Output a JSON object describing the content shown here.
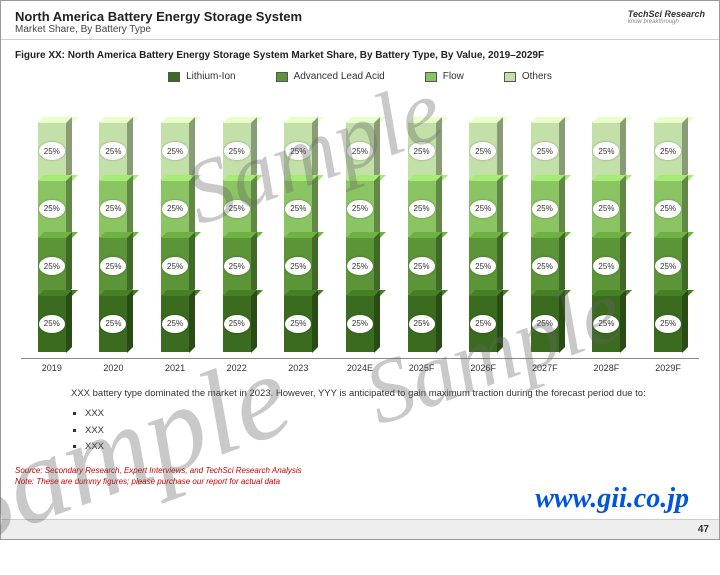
{
  "header": {
    "title": "North America Battery Energy Storage System",
    "subtitle": "Market Share, By Battery Type",
    "logo": "TechSci Research",
    "logo_sub": "know breakthrough"
  },
  "figure_title": "Figure XX: North America Battery Energy Storage System Market Share, By Battery Type, By Value, 2019–2029F",
  "legend": [
    {
      "label": "Lithium-Ion",
      "color": "#3a6b1f"
    },
    {
      "label": "Advanced Lead Acid",
      "color": "#5c9438"
    },
    {
      "label": "Flow",
      "color": "#8bc463"
    },
    {
      "label": "Others",
      "color": "#c2e0a8"
    }
  ],
  "chart": {
    "type": "stacked-bar",
    "years": [
      "2019",
      "2020",
      "2021",
      "2022",
      "2023",
      "2024E",
      "2025F",
      "2026F",
      "2027F",
      "2028F",
      "2029F"
    ],
    "segments": [
      {
        "color": "#c2e0a8",
        "value": "25%"
      },
      {
        "color": "#8bc463",
        "value": "25%"
      },
      {
        "color": "#5c9438",
        "value": "25%"
      },
      {
        "color": "#3a6b1f",
        "value": "25%"
      }
    ],
    "ylim": [
      0,
      100
    ]
  },
  "body": {
    "text": "XXX battery type dominated the market in 2023. However, YYY is anticipated to gain maximum traction during the forecast period due to:",
    "bullets": [
      "XXX",
      "XXX",
      "XXX"
    ]
  },
  "source": "Source: Secondary Research, Expert Interviews, and TechSci Research Analysis",
  "note": "Note: These are dummy figures; please purchase our report for actual data",
  "page": "47",
  "watermark": "Sample",
  "url": "www.gii.co.jp"
}
